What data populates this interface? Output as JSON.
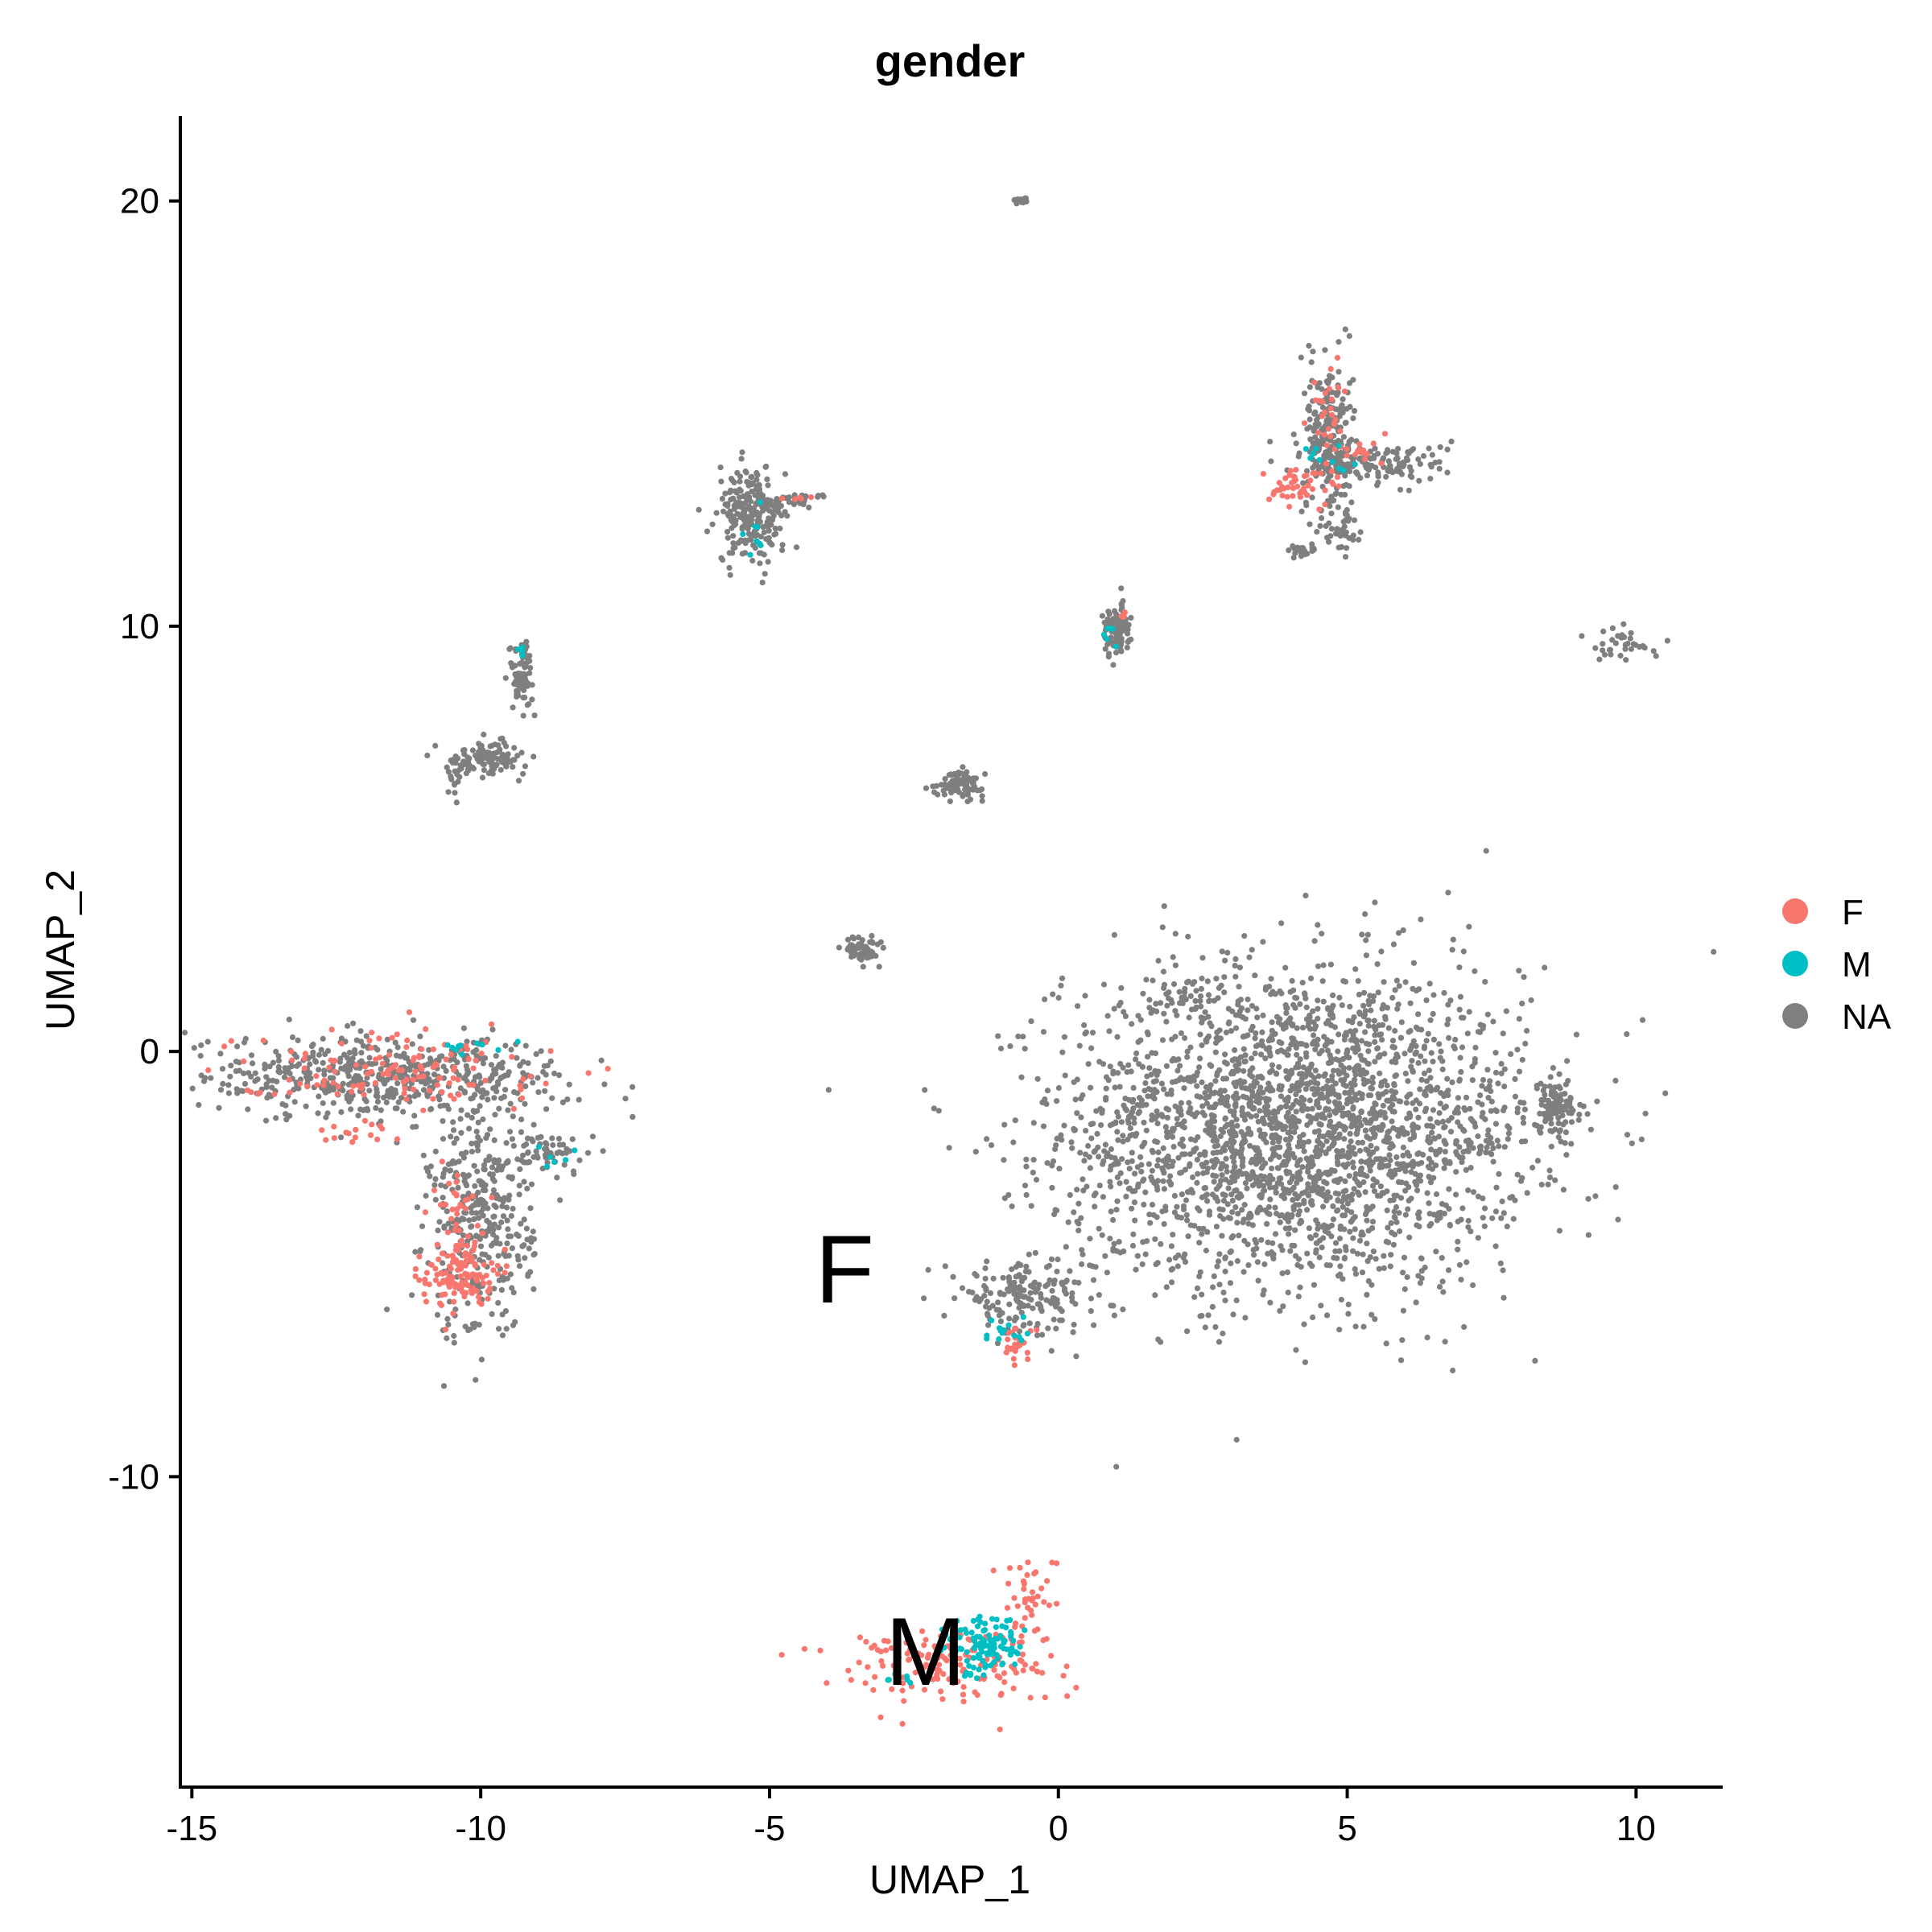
{
  "chart_data": {
    "type": "scatter",
    "title": "gender",
    "xlabel": "UMAP_1",
    "ylabel": "UMAP_2",
    "xlim": [
      -15.2,
      11.5
    ],
    "ylim": [
      -17.3,
      22
    ],
    "x_ticks": [
      {
        "value": -15,
        "label": "-15"
      },
      {
        "value": -10,
        "label": "-10"
      },
      {
        "value": -5,
        "label": "-5"
      },
      {
        "value": 0,
        "label": "0"
      },
      {
        "value": 5,
        "label": "5"
      },
      {
        "value": 10,
        "label": "10"
      }
    ],
    "y_ticks": [
      {
        "value": -10,
        "label": "-10"
      },
      {
        "value": 0,
        "label": "0"
      },
      {
        "value": 10,
        "label": "10"
      },
      {
        "value": 20,
        "label": "20"
      }
    ],
    "grid": false,
    "legend_position": "right",
    "legend": [
      {
        "key": "F",
        "label": "F",
        "color": "#F8766D"
      },
      {
        "key": "M",
        "label": "M",
        "color": "#00BFC4"
      },
      {
        "key": "NA",
        "label": "NA",
        "color": "#7F7F7F"
      }
    ],
    "annotations": [
      {
        "text": "F",
        "x": -3.7,
        "y": -5.3
      },
      {
        "text": "M",
        "x": -2.3,
        "y": -14.3
      }
    ],
    "series": [
      {
        "name": "NA",
        "color": "#7F7F7F",
        "clusters": [
          {
            "cx": 4.1,
            "cy": -1.8,
            "sx": 2.0,
            "sy": 1.9,
            "n": 2600
          },
          {
            "cx": 8.6,
            "cy": -1.3,
            "sx": 0.25,
            "sy": 0.3,
            "n": 90
          },
          {
            "cx": 7.3,
            "cy": -1.9,
            "sx": 0.6,
            "sy": 0.35,
            "n": 40
          },
          {
            "cx": 2.2,
            "cy": 1.3,
            "sx": 0.35,
            "sy": 0.2,
            "n": 25
          },
          {
            "cx": -0.6,
            "cy": -5.8,
            "sx": 0.55,
            "sy": 0.4,
            "n": 170
          },
          {
            "cx": 0.9,
            "cy": -4.1,
            "sx": 0.25,
            "sy": 0.5,
            "n": 12
          },
          {
            "cx": -11.8,
            "cy": -0.6,
            "sx": 1.7,
            "sy": 0.45,
            "n": 550
          },
          {
            "cx": -8.8,
            "cy": -2.4,
            "sx": 0.35,
            "sy": 0.25,
            "n": 60
          },
          {
            "cx": -10.0,
            "cy": -4.0,
            "sx": 0.45,
            "sy": 1.4,
            "n": 360
          },
          {
            "cx": -5.3,
            "cy": 12.6,
            "sx": 0.3,
            "sy": 0.55,
            "n": 230
          },
          {
            "cx": -4.6,
            "cy": 13.0,
            "sx": 0.35,
            "sy": 0.06,
            "n": 25
          },
          {
            "cx": -9.3,
            "cy": 8.9,
            "sx": 0.1,
            "sy": 0.4,
            "n": 75
          },
          {
            "cx": -9.9,
            "cy": 6.9,
            "sx": 0.35,
            "sy": 0.18,
            "n": 110
          },
          {
            "cx": -10.4,
            "cy": 6.4,
            "sx": 0.1,
            "sy": 0.25,
            "n": 15
          },
          {
            "cx": -1.7,
            "cy": 6.3,
            "sx": 0.2,
            "sy": 0.15,
            "n": 90
          },
          {
            "cx": -3.4,
            "cy": 2.4,
            "sx": 0.15,
            "sy": 0.15,
            "n": 60
          },
          {
            "cx": 1.0,
            "cy": 9.9,
            "sx": 0.12,
            "sy": 0.3,
            "n": 100
          },
          {
            "cx": -0.6,
            "cy": 20.0,
            "sx": 0.08,
            "sy": 0.05,
            "n": 14
          },
          {
            "cx": 4.7,
            "cy": 14.5,
            "sx": 0.2,
            "sy": 0.9,
            "n": 230
          },
          {
            "cx": 5.6,
            "cy": 13.8,
            "sx": 0.6,
            "sy": 0.25,
            "n": 130
          },
          {
            "cx": 4.9,
            "cy": 12.3,
            "sx": 0.15,
            "sy": 0.35,
            "n": 40
          },
          {
            "cx": 4.2,
            "cy": 11.8,
            "sx": 0.15,
            "sy": 0.1,
            "n": 25
          },
          {
            "cx": 9.8,
            "cy": 9.6,
            "sx": 0.3,
            "sy": 0.2,
            "n": 35
          }
        ]
      },
      {
        "name": "F",
        "color": "#F8766D",
        "clusters": [
          {
            "cx": -10.4,
            "cy": -5.3,
            "sx": 0.3,
            "sy": 0.35,
            "n": 120
          },
          {
            "cx": -10.4,
            "cy": -3.8,
            "sx": 0.2,
            "sy": 0.5,
            "n": 40
          },
          {
            "cx": -11.5,
            "cy": -0.4,
            "sx": 1.4,
            "sy": 0.45,
            "n": 130
          },
          {
            "cx": -12.3,
            "cy": -1.9,
            "sx": 0.4,
            "sy": 0.12,
            "n": 15
          },
          {
            "cx": -2.0,
            "cy": -14.4,
            "sx": 1.0,
            "sy": 0.45,
            "n": 160
          },
          {
            "cx": -0.5,
            "cy": -12.8,
            "sx": 0.25,
            "sy": 0.5,
            "n": 40
          },
          {
            "cx": -0.7,
            "cy": -6.9,
            "sx": 0.15,
            "sy": 0.2,
            "n": 25
          },
          {
            "cx": 4.1,
            "cy": 13.3,
            "sx": 0.35,
            "sy": 0.25,
            "n": 45
          },
          {
            "cx": 4.7,
            "cy": 14.9,
            "sx": 0.15,
            "sy": 0.7,
            "n": 30
          },
          {
            "cx": 5.3,
            "cy": 14.2,
            "sx": 0.25,
            "sy": 0.2,
            "n": 15
          },
          {
            "cx": 1.1,
            "cy": 10.2,
            "sx": 0.05,
            "sy": 0.1,
            "n": 4
          },
          {
            "cx": -4.5,
            "cy": 13.0,
            "sx": 0.15,
            "sy": 0.05,
            "n": 5
          }
        ]
      },
      {
        "name": "M",
        "color": "#00BFC4",
        "clusters": [
          {
            "cx": -1.3,
            "cy": -14.0,
            "sx": 0.35,
            "sy": 0.35,
            "n": 110
          },
          {
            "cx": -2.6,
            "cy": -14.8,
            "sx": 0.2,
            "sy": 0.1,
            "n": 8
          },
          {
            "cx": -0.9,
            "cy": -6.6,
            "sx": 0.2,
            "sy": 0.2,
            "n": 15
          },
          {
            "cx": 0.9,
            "cy": 9.8,
            "sx": 0.05,
            "sy": 0.15,
            "n": 6
          },
          {
            "cx": -5.3,
            "cy": 12.2,
            "sx": 0.1,
            "sy": 0.3,
            "n": 8
          },
          {
            "cx": -10.3,
            "cy": 0.0,
            "sx": 0.4,
            "sy": 0.15,
            "n": 10
          },
          {
            "cx": -8.7,
            "cy": -2.5,
            "sx": 0.2,
            "sy": 0.1,
            "n": 6
          },
          {
            "cx": 4.7,
            "cy": 14.1,
            "sx": 0.3,
            "sy": 0.3,
            "n": 10
          },
          {
            "cx": -9.3,
            "cy": 9.3,
            "sx": 0.05,
            "sy": 0.15,
            "n": 4
          }
        ]
      }
    ]
  }
}
